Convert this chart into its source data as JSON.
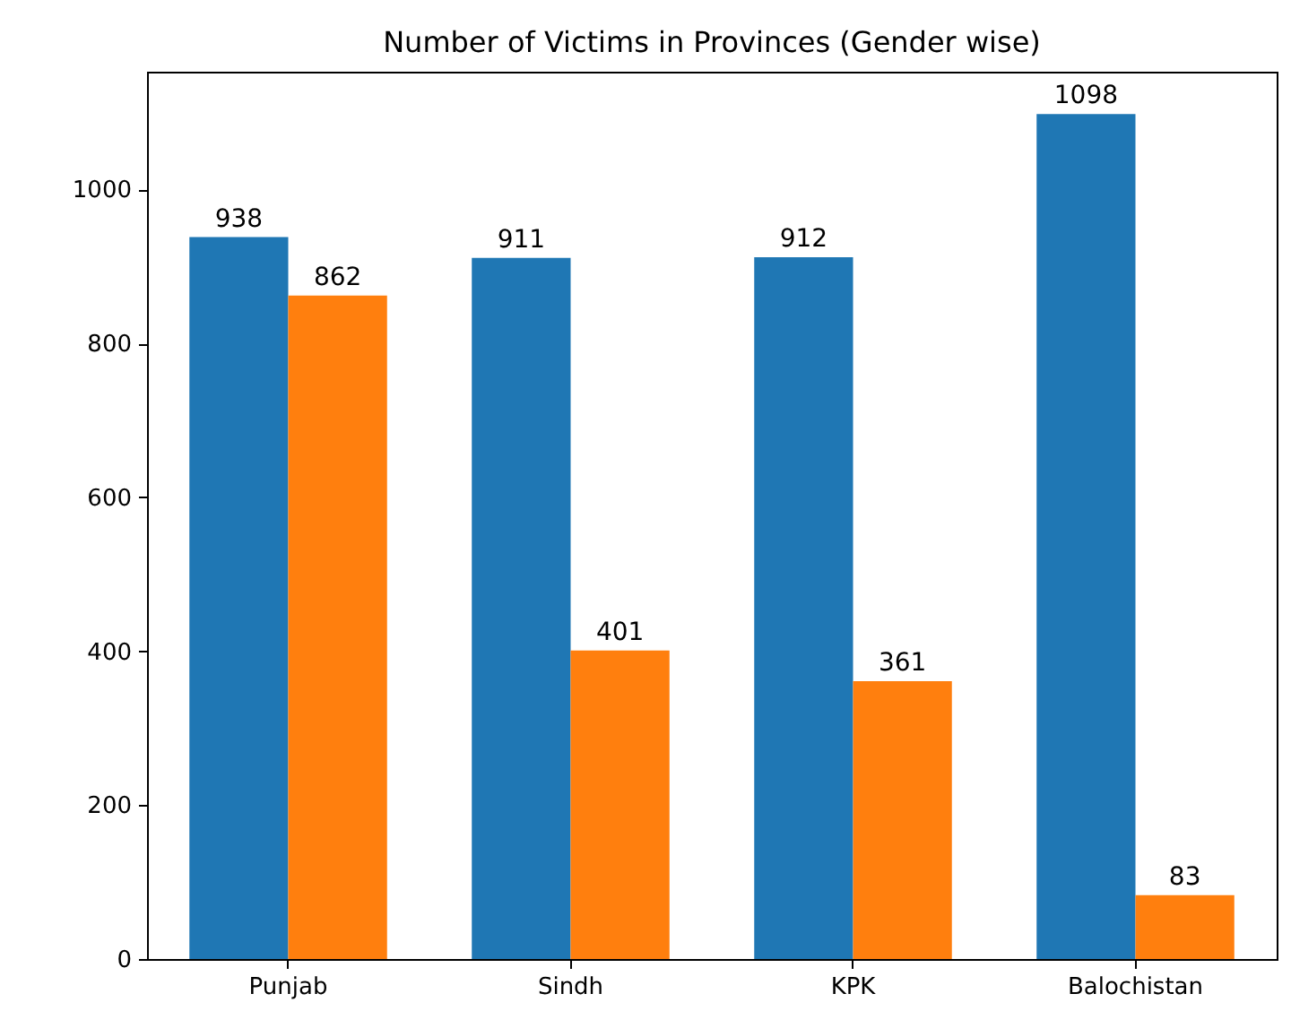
{
  "chart_data": {
    "type": "bar",
    "title": "Number of Victims in Provinces (Gender wise)",
    "categories": [
      "Punjab",
      "Sindh",
      "KPK",
      "Balochistan"
    ],
    "series": [
      {
        "color": "#1f77b4",
        "values": [
          938,
          911,
          912,
          1098
        ]
      },
      {
        "color": "#ff7f0e",
        "values": [
          862,
          401,
          361,
          83
        ]
      }
    ],
    "ylim": [
      0,
      1153
    ],
    "yticks": [
      0,
      200,
      400,
      600,
      800,
      1000
    ],
    "grid": false,
    "legend": false,
    "data_labels": true
  }
}
